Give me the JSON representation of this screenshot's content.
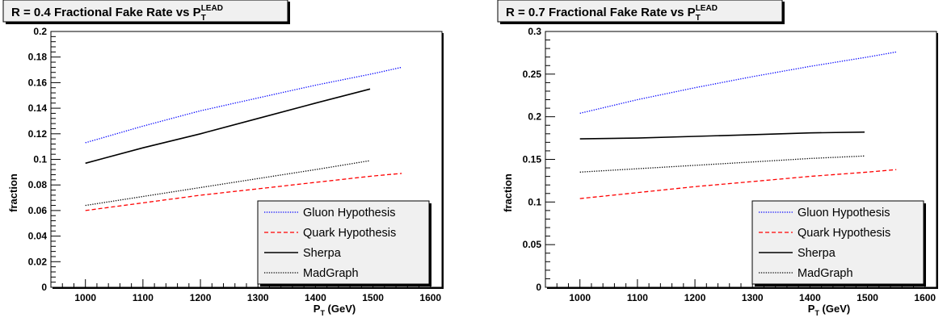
{
  "colors": {
    "gluon": "#0000ff",
    "quark": "#ff0000",
    "sherpa": "#000000",
    "madgraph": "#000000"
  },
  "chart_data": [
    {
      "type": "line",
      "title": "R = 0.4 Fractional Fake Rate vs P",
      "title_sub": "T",
      "title_sup": "LEAD",
      "xlabel": "P",
      "xlabel_sub": "T",
      "xlabel_unit": " (GeV)",
      "ylabel": "fraction",
      "xlim": [
        940,
        1620
      ],
      "ylim": [
        0,
        0.2
      ],
      "xticks": [
        1000,
        1100,
        1200,
        1300,
        1400,
        1500,
        1600
      ],
      "yticks": [
        0,
        0.02,
        0.04,
        0.06,
        0.08,
        0.1,
        0.12,
        0.14,
        0.16,
        0.18,
        0.2
      ],
      "ytick_labels": [
        "0",
        "0.02",
        "0.04",
        "0.06",
        "0.08",
        "0.1",
        "0.12",
        "0.14",
        "0.16",
        "0.18",
        "0.2"
      ],
      "grid": false,
      "legend_position": "bottom-right",
      "series": [
        {
          "name": "Gluon Hypothesis",
          "style": "dotted",
          "color": "#0000ff",
          "x": [
            1000,
            1100,
            1200,
            1300,
            1400,
            1500,
            1550
          ],
          "y": [
            0.113,
            0.126,
            0.138,
            0.148,
            0.158,
            0.167,
            0.172
          ]
        },
        {
          "name": "Quark Hypothesis",
          "style": "dashed",
          "color": "#ff0000",
          "x": [
            1000,
            1100,
            1200,
            1300,
            1400,
            1500,
            1550
          ],
          "y": [
            0.06,
            0.066,
            0.072,
            0.077,
            0.082,
            0.087,
            0.089
          ]
        },
        {
          "name": "Sherpa",
          "style": "solid",
          "color": "#000000",
          "x": [
            1000,
            1100,
            1200,
            1300,
            1400,
            1495
          ],
          "y": [
            0.097,
            0.109,
            0.12,
            0.132,
            0.144,
            0.155
          ]
        },
        {
          "name": "MadGraph",
          "style": "dotted",
          "color": "#000000",
          "x": [
            1000,
            1100,
            1200,
            1300,
            1400,
            1495
          ],
          "y": [
            0.064,
            0.071,
            0.078,
            0.085,
            0.092,
            0.099
          ]
        }
      ]
    },
    {
      "type": "line",
      "title": "R = 0.7 Fractional Fake Rate vs P",
      "title_sub": "T",
      "title_sup": "LEAD",
      "xlabel": "P",
      "xlabel_sub": "T",
      "xlabel_unit": " (GeV)",
      "ylabel": "fraction",
      "xlim": [
        940,
        1620
      ],
      "ylim": [
        0,
        0.3
      ],
      "xticks": [
        1000,
        1100,
        1200,
        1300,
        1400,
        1500,
        1600
      ],
      "yticks": [
        0,
        0.05,
        0.1,
        0.15,
        0.2,
        0.25,
        0.3
      ],
      "ytick_labels": [
        "0",
        "0.05",
        "0.1",
        "0.15",
        "0.2",
        "0.25",
        "0.3"
      ],
      "grid": false,
      "legend_position": "bottom-right",
      "series": [
        {
          "name": "Gluon Hypothesis",
          "style": "dotted",
          "color": "#0000ff",
          "x": [
            1000,
            1100,
            1200,
            1300,
            1400,
            1500,
            1550
          ],
          "y": [
            0.204,
            0.22,
            0.234,
            0.247,
            0.259,
            0.27,
            0.276
          ]
        },
        {
          "name": "Quark Hypothesis",
          "style": "dashed",
          "color": "#ff0000",
          "x": [
            1000,
            1100,
            1200,
            1300,
            1400,
            1500,
            1550
          ],
          "y": [
            0.104,
            0.111,
            0.118,
            0.124,
            0.13,
            0.135,
            0.138
          ]
        },
        {
          "name": "Sherpa",
          "style": "solid",
          "color": "#000000",
          "x": [
            1000,
            1100,
            1200,
            1300,
            1400,
            1495
          ],
          "y": [
            0.174,
            0.175,
            0.177,
            0.179,
            0.181,
            0.182
          ]
        },
        {
          "name": "MadGraph",
          "style": "dotted",
          "color": "#000000",
          "x": [
            1000,
            1100,
            1200,
            1300,
            1400,
            1495
          ],
          "y": [
            0.135,
            0.139,
            0.143,
            0.147,
            0.151,
            0.154
          ]
        }
      ]
    }
  ]
}
